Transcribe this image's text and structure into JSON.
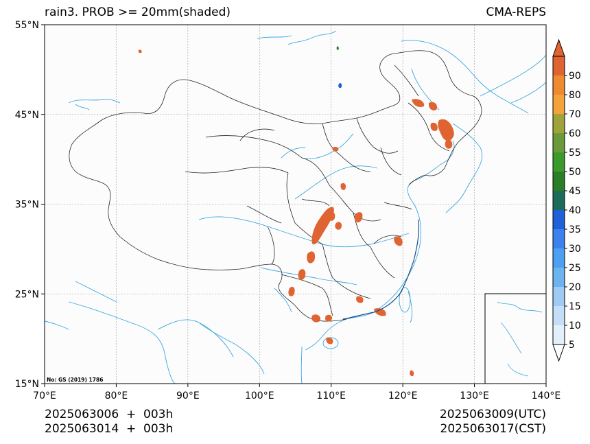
{
  "title_left": "rain3. PROB >= 20mm(shaded)",
  "title_right": "CMA-REPS",
  "credit": "No: GS (2019) 1786",
  "footer": {
    "init_utc": "2025063006  +  003h",
    "init_cst": "2025063014  +  003h",
    "valid_utc": "2025063009(UTC)",
    "valid_cst": "2025063017(CST)"
  },
  "axes": {
    "lon_range": [
      70,
      140
    ],
    "lat_range": [
      15,
      55
    ],
    "lon_ticks": [
      70,
      80,
      90,
      100,
      110,
      120,
      130,
      140
    ],
    "lat_ticks": [
      15,
      25,
      35,
      45,
      55
    ],
    "lon_labels": [
      "70°E",
      "80°E",
      "90°E",
      "100°E",
      "110°E",
      "120°E",
      "130°E",
      "140°E"
    ],
    "lat_labels": [
      "15°N",
      "25°N",
      "35°N",
      "45°N",
      "55°N"
    ],
    "grid": true
  },
  "colorbar": {
    "levels": [
      5,
      10,
      15,
      20,
      25,
      30,
      35,
      40,
      45,
      50,
      55,
      60,
      70,
      80,
      90
    ],
    "colors": [
      "#e3f0fc",
      "#c5def8",
      "#9fcaf4",
      "#6bb4ef",
      "#4d9ff0",
      "#3b82ee",
      "#2060d8",
      "#1d6b5a",
      "#2b7d26",
      "#3c9a2c",
      "#6a9a3a",
      "#a0a23c",
      "#f2a43b",
      "#f08a30",
      "#e06432"
    ],
    "extend": "both"
  },
  "colors": {
    "coast": "#3aa7e0",
    "border": "#222222",
    "prob_high": "#e06432"
  }
}
